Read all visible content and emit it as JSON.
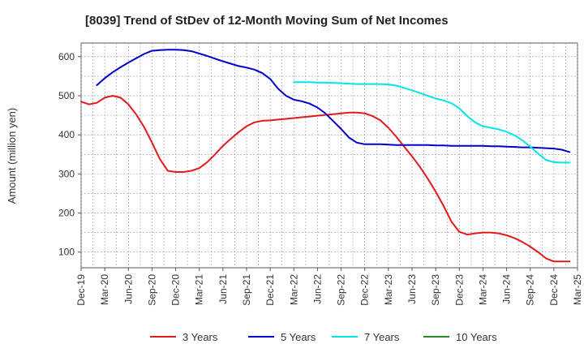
{
  "chart_data": {
    "type": "line",
    "title": "[8039]  Trend of StDev of 12-Month Moving Sum of Net Incomes",
    "ylabel": "Amount (million yen)",
    "xlabel": "",
    "ylim": [
      60,
      635
    ],
    "yticks": [
      100,
      200,
      300,
      400,
      500,
      600
    ],
    "x_tick_labels": [
      "Dec-19",
      "Mar-20",
      "Jun-20",
      "Sep-20",
      "Dec-20",
      "Mar-21",
      "Jun-21",
      "Sep-21",
      "Dec-21",
      "Mar-22",
      "Jun-22",
      "Sep-22",
      "Dec-22",
      "Mar-23",
      "Jun-23",
      "Sep-23",
      "Dec-23",
      "Mar-24",
      "Jun-24",
      "Sep-24",
      "Dec-24",
      "Mar-25"
    ],
    "grid": true,
    "legend_position": "bottom",
    "series": [
      {
        "name": "3 Years",
        "color": "#e31a1c",
        "start_month": "Dec-19",
        "values": [
          485,
          478,
          482,
          495,
          500,
          495,
          478,
          452,
          420,
          380,
          338,
          308,
          305,
          305,
          308,
          315,
          330,
          350,
          372,
          390,
          407,
          422,
          432,
          436,
          437,
          439,
          441,
          443,
          445,
          447,
          449,
          451,
          453,
          455,
          457,
          457,
          455,
          448,
          437,
          418,
          395,
          370,
          345,
          318,
          288,
          255,
          218,
          178,
          152,
          145,
          148,
          150,
          150,
          148,
          143,
          136,
          126,
          114,
          100,
          84,
          76,
          76,
          76
        ],
        "gaps": []
      },
      {
        "name": "5 Years",
        "color": "#0000cd",
        "start_month": "Dec-19",
        "values": [
          null,
          null,
          527,
          545,
          560,
          573,
          585,
          596,
          607,
          615,
          617,
          618,
          618,
          617,
          614,
          608,
          602,
          595,
          588,
          582,
          576,
          572,
          567,
          558,
          543,
          518,
          500,
          490,
          486,
          480,
          470,
          455,
          435,
          415,
          393,
          380,
          376,
          376,
          376,
          375,
          374,
          374,
          374,
          374,
          374,
          373,
          373,
          372,
          372,
          372,
          372,
          372,
          371,
          371,
          370,
          369,
          368,
          368,
          367,
          366,
          365,
          362,
          356
        ]
      },
      {
        "name": "7 Years",
        "color": "#00e5ee",
        "start_month": "Dec-19",
        "values": [
          null,
          null,
          null,
          null,
          null,
          null,
          null,
          null,
          null,
          null,
          null,
          null,
          null,
          null,
          null,
          null,
          null,
          null,
          null,
          null,
          null,
          null,
          null,
          null,
          null,
          null,
          null,
          535,
          535,
          535,
          534,
          534,
          533,
          532,
          531,
          530,
          530,
          530,
          530,
          529,
          526,
          520,
          514,
          507,
          500,
          493,
          488,
          481,
          468,
          448,
          432,
          422,
          418,
          414,
          408,
          399,
          386,
          370,
          352,
          336,
          330,
          329,
          329
        ]
      },
      {
        "name": "10 Years",
        "color": "#228b22",
        "start_month": "Dec-19",
        "values": []
      }
    ]
  }
}
